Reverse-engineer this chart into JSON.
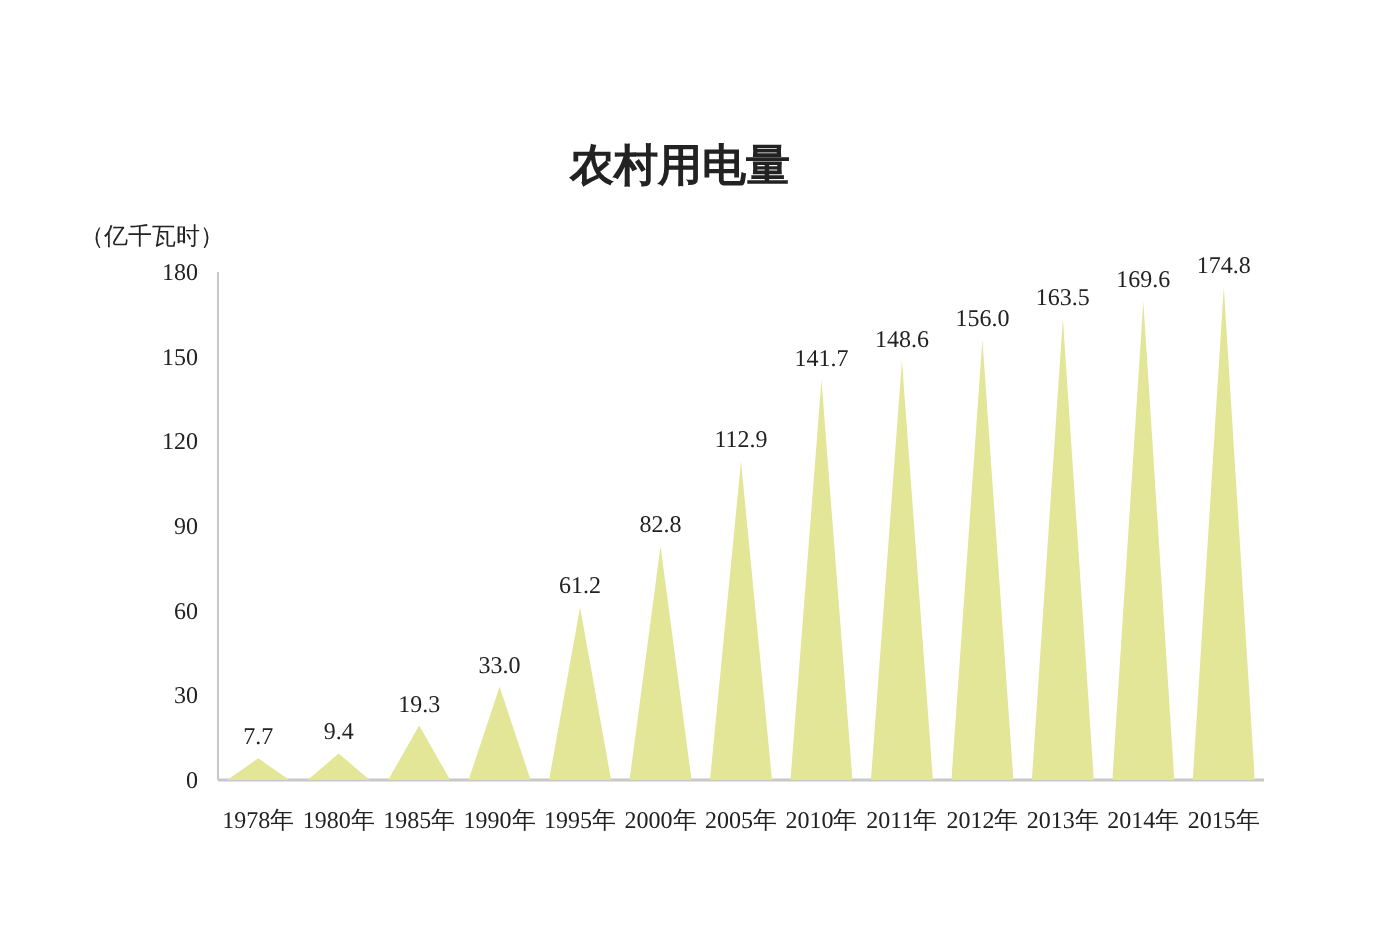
{
  "chart_data": {
    "type": "bar",
    "title": "农村用电量",
    "ylabel": "（亿千瓦时）",
    "categories": [
      "1978年",
      "1980年",
      "1985年",
      "1990年",
      "1995年",
      "2000年",
      "2005年",
      "2010年",
      "2011年",
      "2012年",
      "2013年",
      "2014年",
      "2015年"
    ],
    "values": [
      7.7,
      9.4,
      19.3,
      33.0,
      61.2,
      82.8,
      112.9,
      141.7,
      148.6,
      156.0,
      163.5,
      169.6,
      174.8
    ],
    "value_labels": [
      "7.7",
      "9.4",
      "19.3",
      "33.0",
      "61.2",
      "82.8",
      "112.9",
      "141.7",
      "148.6",
      "156.0",
      "163.5",
      "169.6",
      "174.8"
    ],
    "color": "#e3e597",
    "ylim": [
      0,
      180
    ],
    "yticks": [
      0,
      30,
      60,
      90,
      120,
      150,
      180
    ]
  }
}
